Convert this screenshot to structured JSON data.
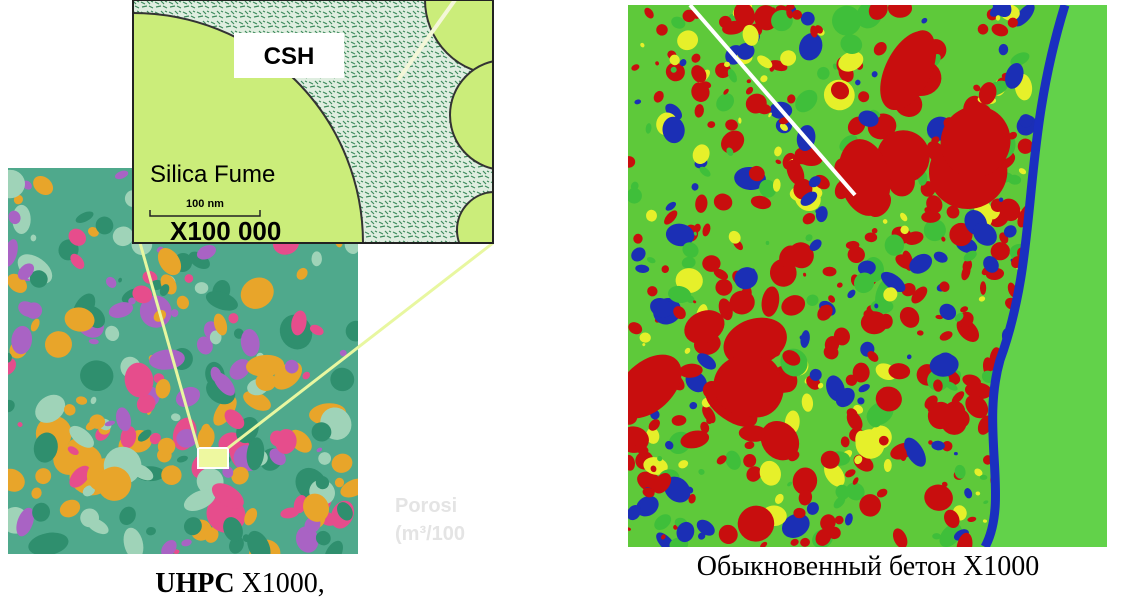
{
  "left_figure": {
    "inset": {
      "label_csh": "CSH",
      "label_silica": "Silica Fume",
      "scale_label": "100 nm",
      "magnification": "X100 000"
    },
    "faint_labels": [
      "Porosi",
      "(m³/100"
    ],
    "caption": {
      "bold": "UHPC",
      "rest": " X1000,"
    }
  },
  "right_figure": {
    "caption": "Обыкновенный бетон X1000"
  }
}
